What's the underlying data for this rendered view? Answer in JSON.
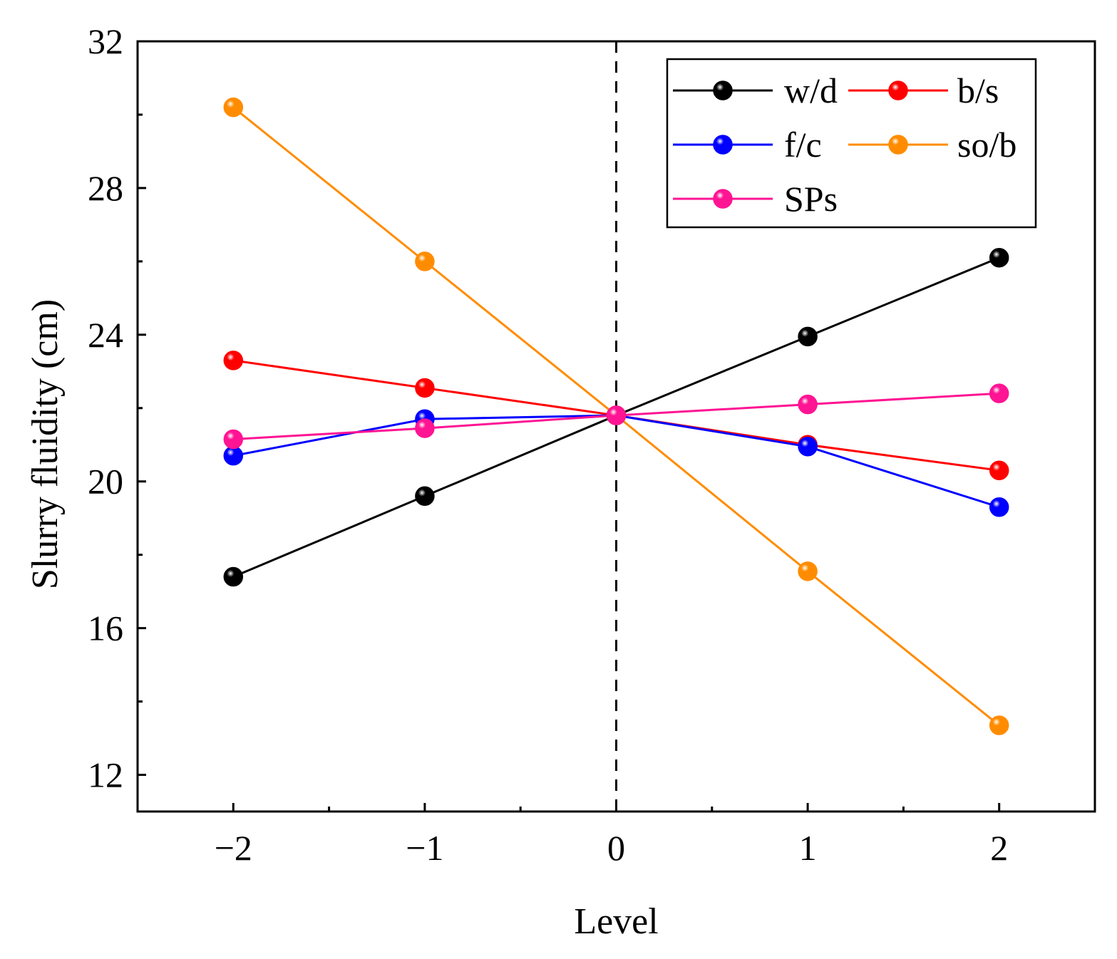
{
  "chart_data": {
    "type": "line",
    "xlabel": "Level",
    "ylabel": "Slurry fluidity (cm)",
    "xlim": [
      -2.5,
      2.5
    ],
    "ylim": [
      11,
      32
    ],
    "x": [
      -2,
      -1,
      0,
      1,
      2
    ],
    "xticks": [
      -2,
      -1,
      0,
      1,
      2
    ],
    "xtick_labels": [
      "−2",
      "−1",
      "0",
      "1",
      "2"
    ],
    "yticks": [
      12,
      16,
      20,
      24,
      28,
      32
    ],
    "ytick_labels": [
      "12",
      "16",
      "20",
      "24",
      "28",
      "32"
    ],
    "reference_line": {
      "x": 0,
      "style": "dashed"
    },
    "grid": false,
    "legend_position": "top-right",
    "series": [
      {
        "name": "w/d",
        "color": "#000000",
        "values": [
          17.4,
          19.6,
          21.8,
          23.95,
          26.1
        ]
      },
      {
        "name": "b/s",
        "color": "#ff0000",
        "values": [
          23.3,
          22.55,
          21.8,
          21.0,
          20.3
        ]
      },
      {
        "name": "f/c",
        "color": "#0000ff",
        "values": [
          20.7,
          21.7,
          21.8,
          20.95,
          19.3
        ]
      },
      {
        "name": "so/b",
        "color": "#ff8c00",
        "values": [
          30.2,
          26.0,
          21.8,
          17.55,
          13.35
        ]
      },
      {
        "name": "SPs",
        "color": "#ff1493",
        "values": [
          21.15,
          21.45,
          21.8,
          22.1,
          22.4
        ]
      }
    ]
  }
}
